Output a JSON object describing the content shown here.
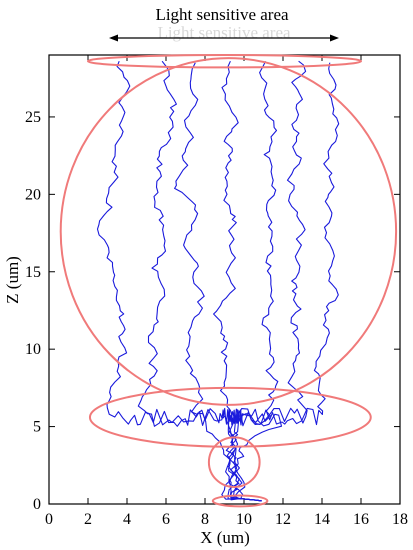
{
  "figure": {
    "title": "Light sensitive area",
    "title_ghost": "Light sensitive area",
    "xlabel": "X (um)",
    "ylabel": "Z (um)",
    "x_ticks": [
      "0",
      "2",
      "4",
      "6",
      "8",
      "10",
      "12",
      "14",
      "16",
      "18"
    ],
    "y_ticks": [
      "0",
      "5",
      "10",
      "15",
      "20",
      "25"
    ],
    "xlim": [
      0,
      18
    ],
    "ylim": [
      0,
      29
    ],
    "colors": {
      "trace": "#1a1adc",
      "ellipse": "#f07a7a",
      "axis": "#000000"
    },
    "traces_start": [
      {
        "x": 3.6,
        "z": 28.6
      },
      {
        "x": 5.8,
        "z": 28.6
      },
      {
        "x": 7.5,
        "z": 28.5
      },
      {
        "x": 9.3,
        "z": 28.6
      },
      {
        "x": 11.1,
        "z": 28.6
      },
      {
        "x": 12.8,
        "z": 28.6
      },
      {
        "x": 14.4,
        "z": 28.5
      }
    ],
    "regions": [
      {
        "name": "top-ellipse",
        "cx": 9.0,
        "cz": 28.6,
        "rx": 7.0,
        "rz": 0.4
      },
      {
        "name": "large-circle",
        "cx": 9.2,
        "cz": 17.6,
        "rx": 8.6,
        "rz": 11.2
      },
      {
        "name": "middle-ellipse",
        "cx": 9.3,
        "cz": 5.6,
        "rx": 7.2,
        "rz": 1.9
      },
      {
        "name": "small-circle",
        "cx": 9.5,
        "cz": 2.7,
        "rx": 1.3,
        "rz": 1.6
      },
      {
        "name": "bottom-ellipse",
        "cx": 9.8,
        "cz": 0.2,
        "rx": 1.4,
        "rz": 0.35
      }
    ]
  }
}
